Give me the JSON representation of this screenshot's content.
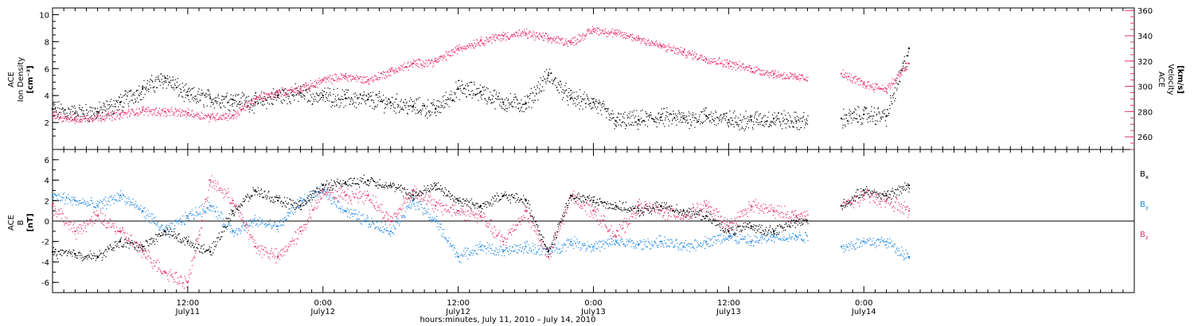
{
  "colors": {
    "black": "#000000",
    "pink": "#e8326a",
    "blue": "#1e88e5"
  },
  "x_axis": {
    "title": "hours:minutes, July 11, 2010 – July 14, 2010",
    "range_hours": [
      0,
      96
    ],
    "ticks": [
      {
        "h": 12,
        "top": "12:00",
        "bottom": "July11"
      },
      {
        "h": 24,
        "top": "0:00",
        "bottom": "July12"
      },
      {
        "h": 36,
        "top": "12:00",
        "bottom": "July12"
      },
      {
        "h": 48,
        "top": "0:00",
        "bottom": "July13"
      },
      {
        "h": 60,
        "top": "12:00",
        "bottom": "July13"
      },
      {
        "h": 72,
        "top": "0:00",
        "bottom": "July14"
      }
    ]
  },
  "chart_data": [
    {
      "type": "scatter",
      "panel": "top",
      "ylabel_left": [
        "ACE",
        "Ion Density",
        "[cm⁻³]"
      ],
      "ylabel_right": [
        "ACE",
        "Velocity",
        "[km/s]"
      ],
      "ylim_left": [
        0,
        10.5
      ],
      "yticks_left": [
        2,
        4,
        6,
        8,
        10
      ],
      "ylim_right": [
        250,
        362
      ],
      "yticks_right": [
        260,
        280,
        300,
        320,
        340,
        360
      ],
      "series": [
        {
          "axis": "left",
          "color": "black",
          "x": [
            0,
            2,
            4,
            6,
            8,
            10,
            12,
            14,
            16,
            18,
            20,
            22,
            24,
            26,
            28,
            30,
            32,
            34,
            36,
            38,
            40,
            42,
            44,
            46,
            48,
            50,
            52,
            54,
            56,
            58,
            60,
            62,
            64,
            66,
            68,
            70,
            72,
            74,
            76
          ],
          "y": [
            3,
            2.7,
            2.8,
            3.5,
            4.5,
            5.3,
            4,
            3.8,
            3.7,
            3.5,
            4,
            4.2,
            4,
            3.8,
            3.7,
            3.5,
            3.2,
            3,
            4.5,
            4.3,
            3.5,
            3.4,
            5.5,
            3.8,
            3.5,
            2.1,
            2.2,
            2.4,
            2.3,
            2.5,
            2.2,
            2.2,
            2.3,
            2.1,
            null,
            2.3,
            2.6,
            2.5,
            7.5
          ],
          "gap": [
            [
              67,
              70
            ]
          ]
        },
        {
          "axis": "right",
          "color": "pink",
          "x": [
            0,
            2,
            4,
            6,
            8,
            10,
            12,
            14,
            16,
            18,
            20,
            22,
            24,
            26,
            28,
            30,
            32,
            34,
            36,
            38,
            40,
            42,
            44,
            46,
            48,
            50,
            52,
            54,
            56,
            58,
            60,
            62,
            64,
            66,
            68,
            70,
            72,
            74,
            76
          ],
          "y": [
            277,
            274,
            276,
            278,
            281,
            280,
            279,
            276,
            277,
            290,
            295,
            298,
            305,
            308,
            305,
            312,
            318,
            320,
            330,
            336,
            340,
            342,
            338,
            335,
            345,
            342,
            338,
            332,
            327,
            322,
            318,
            314,
            310,
            307,
            null,
            310,
            302,
            298,
            318
          ],
          "gap": [
            [
              67,
              70
            ]
          ]
        }
      ]
    },
    {
      "type": "scatter",
      "panel": "bottom",
      "ylabel_left": [
        "ACE",
        "B",
        "[nT]"
      ],
      "ylim": [
        -7,
        7
      ],
      "yticks": [
        -6,
        -4,
        -2,
        0,
        2,
        4,
        6
      ],
      "zero_line": true,
      "series": [
        {
          "name": "Bx",
          "color": "black",
          "x": [
            0,
            2,
            4,
            6,
            8,
            10,
            12,
            14,
            16,
            18,
            20,
            22,
            24,
            26,
            28,
            30,
            32,
            34,
            36,
            38,
            40,
            42,
            44,
            46,
            48,
            50,
            52,
            54,
            56,
            58,
            60,
            62,
            64,
            66,
            68,
            70,
            72,
            74,
            76
          ],
          "y": [
            -3,
            -3.2,
            -3.5,
            -2,
            -2.5,
            -1,
            -2,
            -3,
            1,
            3,
            2,
            1.5,
            3.5,
            3.8,
            4,
            3.5,
            2.5,
            3.5,
            2,
            1.5,
            2.5,
            2,
            -3,
            2.5,
            2,
            1.5,
            1,
            1.5,
            1,
            0.5,
            -1,
            -0.5,
            -1,
            0,
            null,
            1.5,
            3,
            2.5,
            3.5
          ],
          "gap": [
            [
              67,
              70
            ]
          ]
        },
        {
          "name": "By",
          "color": "blue",
          "x": [
            0,
            2,
            4,
            6,
            8,
            10,
            12,
            14,
            16,
            18,
            20,
            22,
            24,
            26,
            28,
            30,
            32,
            34,
            36,
            38,
            40,
            42,
            44,
            46,
            48,
            50,
            52,
            54,
            56,
            58,
            60,
            62,
            64,
            66,
            68,
            70,
            72,
            74,
            76
          ],
          "y": [
            2.5,
            2,
            1.5,
            2.5,
            1,
            -1,
            0.5,
            1.5,
            -1,
            0,
            -0.5,
            2,
            3,
            1,
            0,
            -1,
            2,
            0,
            -3.5,
            -2.5,
            -3,
            -2.5,
            -3,
            -2,
            -2.5,
            -2,
            -2.3,
            -2,
            -2.5,
            -2,
            -1.5,
            -2,
            -1.5,
            -1.5,
            null,
            -2.5,
            -2,
            -2,
            -3.5
          ],
          "gap": [
            [
              67,
              70
            ]
          ]
        },
        {
          "name": "Bz",
          "color": "pink",
          "x": [
            0,
            2,
            4,
            6,
            8,
            10,
            12,
            14,
            16,
            18,
            20,
            22,
            24,
            26,
            28,
            30,
            32,
            34,
            36,
            38,
            40,
            42,
            44,
            46,
            48,
            50,
            52,
            54,
            56,
            58,
            60,
            62,
            64,
            66,
            68,
            70,
            72,
            74,
            76
          ],
          "y": [
            1.5,
            -1,
            0.5,
            -1,
            -3,
            -5,
            -6,
            4,
            2,
            -2.5,
            -3.5,
            -1,
            3,
            2.5,
            2.5,
            0,
            3,
            1.5,
            1,
            0.5,
            -2,
            1,
            -3.5,
            2.5,
            1,
            -1.5,
            1.5,
            1,
            0.5,
            1.5,
            -0.5,
            1.5,
            1,
            0.5,
            null,
            1.5,
            2.5,
            2,
            1
          ],
          "gap": [
            [
              67,
              70
            ]
          ]
        }
      ],
      "legend": [
        "B",
        "B",
        "B"
      ],
      "legend_subscripts": [
        "x",
        "y",
        "z"
      ]
    }
  ]
}
